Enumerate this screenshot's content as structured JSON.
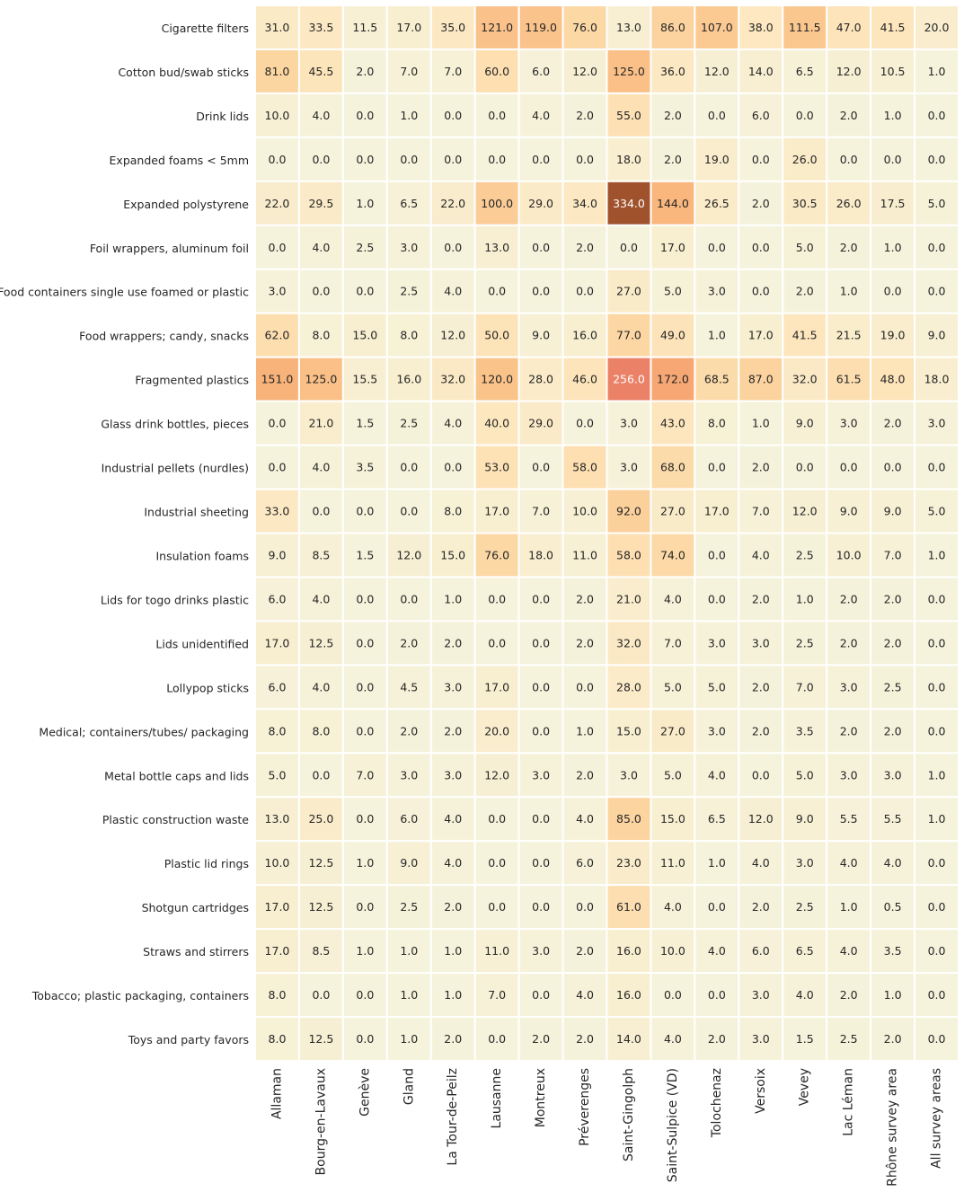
{
  "chart_data": {
    "type": "heatmap",
    "title": "",
    "xlabel": "",
    "ylabel": "",
    "colormap": "light cream to orange to dark brown",
    "color_stops": [
      "#f5f3dc",
      "#fde7bf",
      "#fcd6a2",
      "#f9b97e",
      "#f49f6e",
      "#fa8a73",
      "#a0522d"
    ],
    "vmin": 0,
    "vmax": 334,
    "value_format": "1 decimal",
    "colorbar": false,
    "cell_text_colors": [
      "#262626",
      "#ffffff"
    ],
    "columns": [
      "Allaman",
      "Bourg-en-Lavaux",
      "Genève",
      "Gland",
      "La Tour-de-Peilz",
      "Lausanne",
      "Montreux",
      "Préverenges",
      "Saint-Gingolph",
      "Saint-Sulpice (VD)",
      "Tolochenaz",
      "Versoix",
      "Vevey",
      "Lac Léman",
      "Rhône survey area",
      "All survey areas"
    ],
    "rows": [
      "Cigarette filters",
      "Cotton bud/swab sticks",
      "Drink lids",
      "Expanded foams < 5mm",
      "Expanded polystyrene",
      "Foil wrappers, aluminum foil",
      "Food containers single use foamed or plastic",
      "Food wrappers; candy, snacks",
      "Fragmented plastics",
      "Glass drink bottles, pieces",
      "Industrial pellets (nurdles)",
      "Industrial sheeting",
      "Insulation foams",
      "Lids for togo drinks plastic",
      "Lids unidentified",
      "Lollypop sticks",
      "Medical; containers/tubes/ packaging",
      "Metal bottle caps and lids",
      "Plastic construction waste",
      "Plastic lid rings",
      "Shotgun cartridges",
      "Straws and stirrers",
      "Tobacco; plastic packaging, containers",
      "Toys and party favors"
    ],
    "values": [
      [
        31.0,
        33.5,
        11.5,
        17.0,
        35.0,
        121.0,
        119.0,
        76.0,
        13.0,
        86.0,
        107.0,
        38.0,
        111.5,
        47.0,
        41.5,
        20.0
      ],
      [
        81.0,
        45.5,
        2.0,
        7.0,
        7.0,
        60.0,
        6.0,
        12.0,
        125.0,
        36.0,
        12.0,
        14.0,
        6.5,
        12.0,
        10.5,
        1.0
      ],
      [
        10.0,
        4.0,
        0.0,
        1.0,
        0.0,
        0.0,
        4.0,
        2.0,
        55.0,
        2.0,
        0.0,
        6.0,
        0.0,
        2.0,
        1.0,
        0.0
      ],
      [
        0.0,
        0.0,
        0.0,
        0.0,
        0.0,
        0.0,
        0.0,
        0.0,
        18.0,
        2.0,
        19.0,
        0.0,
        26.0,
        0.0,
        0.0,
        0.0
      ],
      [
        22.0,
        29.5,
        1.0,
        6.5,
        22.0,
        100.0,
        29.0,
        34.0,
        334.0,
        144.0,
        26.5,
        2.0,
        30.5,
        26.0,
        17.5,
        5.0
      ],
      [
        0.0,
        4.0,
        2.5,
        3.0,
        0.0,
        13.0,
        0.0,
        2.0,
        0.0,
        17.0,
        0.0,
        0.0,
        5.0,
        2.0,
        1.0,
        0.0
      ],
      [
        3.0,
        0.0,
        0.0,
        2.5,
        4.0,
        0.0,
        0.0,
        0.0,
        27.0,
        5.0,
        3.0,
        0.0,
        2.0,
        1.0,
        0.0,
        0.0
      ],
      [
        62.0,
        8.0,
        15.0,
        8.0,
        12.0,
        50.0,
        9.0,
        16.0,
        77.0,
        49.0,
        1.0,
        17.0,
        41.5,
        21.5,
        19.0,
        9.0
      ],
      [
        151.0,
        125.0,
        15.5,
        16.0,
        32.0,
        120.0,
        28.0,
        46.0,
        256.0,
        172.0,
        68.5,
        87.0,
        32.0,
        61.5,
        48.0,
        18.0
      ],
      [
        0.0,
        21.0,
        1.5,
        2.5,
        4.0,
        40.0,
        29.0,
        0.0,
        3.0,
        43.0,
        8.0,
        1.0,
        9.0,
        3.0,
        2.0,
        3.0
      ],
      [
        0.0,
        4.0,
        3.5,
        0.0,
        0.0,
        53.0,
        0.0,
        58.0,
        3.0,
        68.0,
        0.0,
        2.0,
        0.0,
        0.0,
        0.0,
        0.0
      ],
      [
        33.0,
        0.0,
        0.0,
        0.0,
        8.0,
        17.0,
        7.0,
        10.0,
        92.0,
        27.0,
        17.0,
        7.0,
        12.0,
        9.0,
        9.0,
        5.0
      ],
      [
        9.0,
        8.5,
        1.5,
        12.0,
        15.0,
        76.0,
        18.0,
        11.0,
        58.0,
        74.0,
        0.0,
        4.0,
        2.5,
        10.0,
        7.0,
        1.0
      ],
      [
        6.0,
        4.0,
        0.0,
        0.0,
        1.0,
        0.0,
        0.0,
        2.0,
        21.0,
        4.0,
        0.0,
        2.0,
        1.0,
        2.0,
        2.0,
        0.0
      ],
      [
        17.0,
        12.5,
        0.0,
        2.0,
        2.0,
        0.0,
        0.0,
        2.0,
        32.0,
        7.0,
        3.0,
        3.0,
        2.5,
        2.0,
        2.0,
        0.0
      ],
      [
        6.0,
        4.0,
        0.0,
        4.5,
        3.0,
        17.0,
        0.0,
        0.0,
        28.0,
        5.0,
        5.0,
        2.0,
        7.0,
        3.0,
        2.5,
        0.0
      ],
      [
        8.0,
        8.0,
        0.0,
        2.0,
        2.0,
        20.0,
        0.0,
        1.0,
        15.0,
        27.0,
        3.0,
        2.0,
        3.5,
        2.0,
        2.0,
        0.0
      ],
      [
        5.0,
        0.0,
        7.0,
        3.0,
        3.0,
        12.0,
        3.0,
        2.0,
        3.0,
        5.0,
        4.0,
        0.0,
        5.0,
        3.0,
        3.0,
        1.0
      ],
      [
        13.0,
        25.0,
        0.0,
        6.0,
        4.0,
        0.0,
        0.0,
        4.0,
        85.0,
        15.0,
        6.5,
        12.0,
        9.0,
        5.5,
        5.5,
        1.0
      ],
      [
        10.0,
        12.5,
        1.0,
        9.0,
        4.0,
        0.0,
        0.0,
        6.0,
        23.0,
        11.0,
        1.0,
        4.0,
        3.0,
        4.0,
        4.0,
        0.0
      ],
      [
        17.0,
        12.5,
        0.0,
        2.5,
        2.0,
        0.0,
        0.0,
        0.0,
        61.0,
        4.0,
        0.0,
        2.0,
        2.5,
        1.0,
        0.5,
        0.0
      ],
      [
        17.0,
        8.5,
        1.0,
        1.0,
        1.0,
        11.0,
        3.0,
        2.0,
        16.0,
        10.0,
        4.0,
        6.0,
        6.5,
        4.0,
        3.5,
        0.0
      ],
      [
        8.0,
        0.0,
        0.0,
        1.0,
        1.0,
        7.0,
        0.0,
        4.0,
        16.0,
        0.0,
        0.0,
        3.0,
        4.0,
        2.0,
        1.0,
        0.0
      ],
      [
        8.0,
        12.5,
        0.0,
        1.0,
        2.0,
        0.0,
        2.0,
        2.0,
        14.0,
        4.0,
        2.0,
        3.0,
        1.5,
        2.5,
        2.0,
        0.0
      ]
    ]
  }
}
